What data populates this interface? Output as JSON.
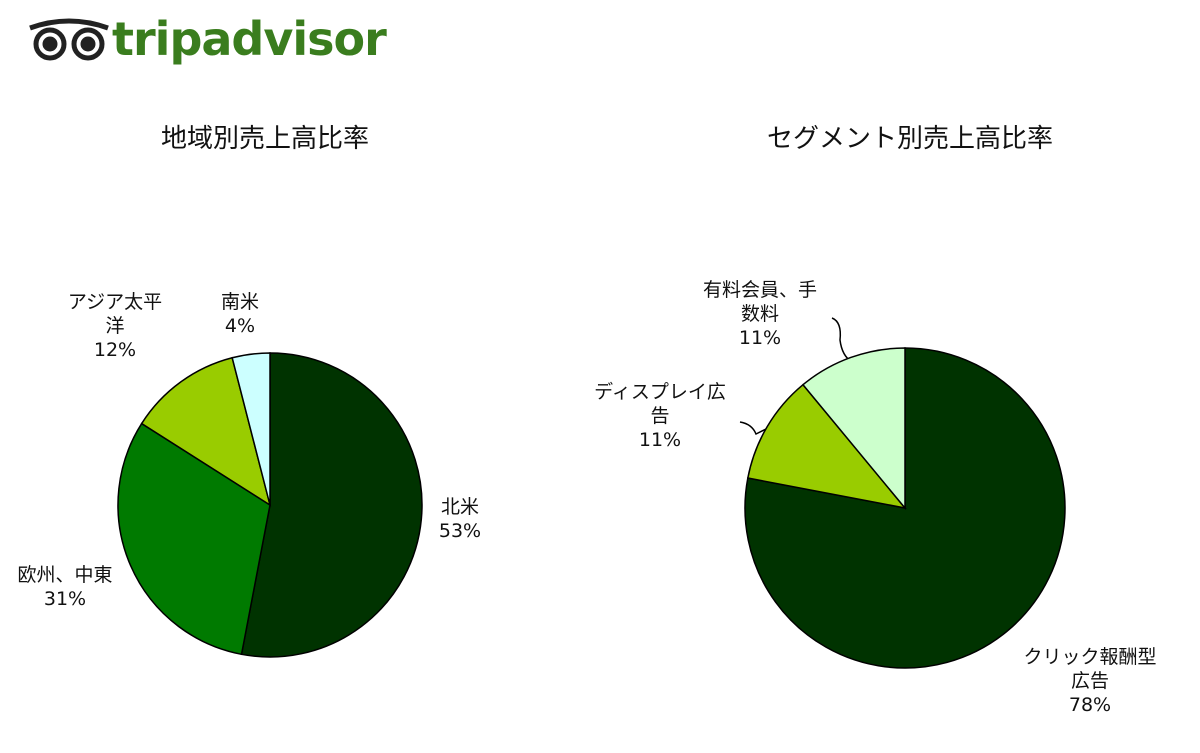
{
  "logo": "tripadvisor",
  "chart_data": [
    {
      "type": "pie",
      "title": "地域別売上高比率",
      "categories": [
        "北米",
        "欧州、中東",
        "アジア太平洋",
        "南米"
      ],
      "values": [
        53,
        31,
        12,
        4
      ],
      "value_labels": [
        "53%",
        "31%",
        "12%",
        "4%"
      ],
      "colors": [
        "#003300",
        "#007a00",
        "#99cc00",
        "#ccffff"
      ]
    },
    {
      "type": "pie",
      "title": "セグメント別売上高比率",
      "categories": [
        "クリック報酬型広告",
        "ディスプレイ広告",
        "有料会員、手数料"
      ],
      "values": [
        78,
        11,
        11
      ],
      "value_labels": [
        "78%",
        "11%",
        "11%"
      ],
      "colors": [
        "#003300",
        "#99cc00",
        "#ccffcc"
      ]
    }
  ]
}
